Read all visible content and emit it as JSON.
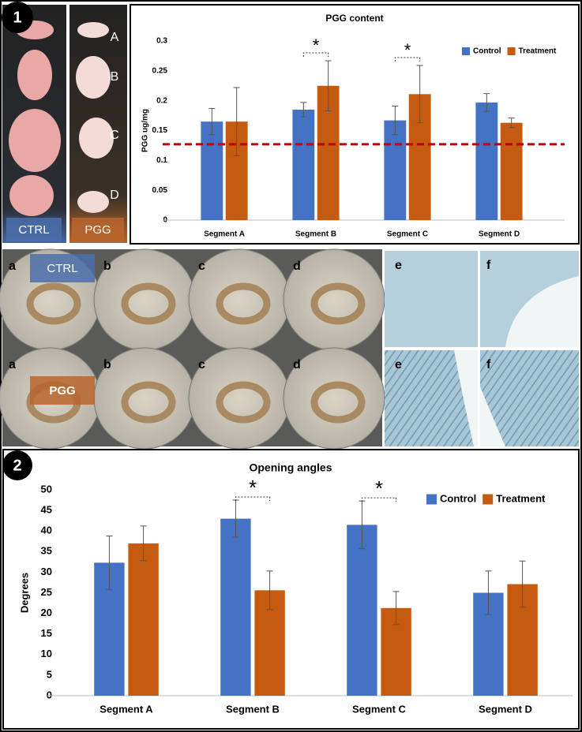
{
  "panels": {
    "labels": [
      "1",
      "2"
    ],
    "tissue": {
      "groups": [
        "CTRL",
        "PGG"
      ],
      "segments": [
        "A",
        "B",
        "C",
        "D"
      ]
    },
    "dishes": {
      "groups": [
        "CTRL",
        "PGG"
      ],
      "letters": [
        "a",
        "b",
        "c",
        "d"
      ]
    },
    "histology": {
      "letters": [
        "e",
        "f"
      ]
    }
  },
  "chart_data": [
    {
      "type": "bar",
      "title": "PGG content",
      "y_label": "PGG ug/mg",
      "categories": [
        "Segment A",
        "Segment B",
        "Segment C",
        "Segment D"
      ],
      "series": [
        {
          "name": "Control",
          "color": "#4472c4",
          "values": [
            0.165,
            0.185,
            0.167,
            0.197
          ],
          "errors": [
            0.022,
            0.012,
            0.024,
            0.015
          ]
        },
        {
          "name": "Treatment",
          "color": "#c55a11",
          "values": [
            0.165,
            0.225,
            0.211,
            0.163
          ],
          "errors": [
            0.057,
            0.042,
            0.048,
            0.008
          ]
        }
      ],
      "ylim": [
        0,
        0.3
      ],
      "yticks": [
        0,
        0.05,
        0.1,
        0.15,
        0.2,
        0.25,
        0.3
      ],
      "reference_line": {
        "value": 0.127,
        "color": "#c00000"
      },
      "significance": [
        null,
        "*",
        "*",
        null
      ],
      "legend": "upper right",
      "grid": false
    },
    {
      "type": "bar",
      "title": "Opening angles",
      "y_label": "Degrees",
      "categories": [
        "Segment A",
        "Segment B",
        "Segment C",
        "Segment D"
      ],
      "series": [
        {
          "name": "Control",
          "color": "#4472c4",
          "values": [
            32.3,
            43,
            41.5,
            25
          ],
          "errors": [
            6.5,
            4.5,
            5.8,
            5.3
          ]
        },
        {
          "name": "Treatment",
          "color": "#c55a11",
          "values": [
            37,
            25.6,
            21.3,
            27.1
          ],
          "errors": [
            4.2,
            4.7,
            4,
            5.6
          ]
        }
      ],
      "ylim": [
        0,
        50
      ],
      "yticks": [
        0,
        5,
        10,
        15,
        20,
        25,
        30,
        35,
        40,
        45,
        50
      ],
      "significance": [
        null,
        "*",
        "*",
        null
      ],
      "legend": "upper right",
      "grid": false
    }
  ]
}
